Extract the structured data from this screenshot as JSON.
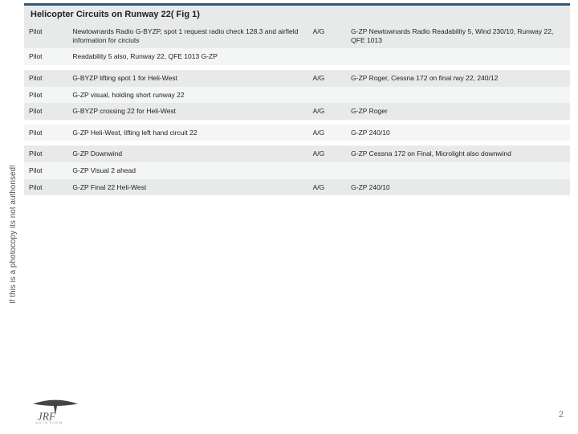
{
  "title": "Helicopter Circuits on Runway 22( Fig 1)",
  "side_text": "If this is a photocopy its not authorised!",
  "page_number": "2",
  "colors": {
    "accent_border": "#2b5a7a",
    "zebra_dark": "#e8eaea",
    "zebra_light": "#f4f5f5"
  },
  "col_widths": [
    "8%",
    "44%",
    "7%",
    "41%"
  ],
  "rows": [
    {
      "zebra": "dark",
      "c0": "Pilot",
      "c1": "Newtownards Radio G-BYZP, spot 1 request radio check 128.3 and airfield information for circiuts",
      "c2": "A/G",
      "c3": "G-ZP Newtownards Radio Readability 5, Wind 230/10, Runway 22, QFE 1013"
    },
    {
      "zebra": "light",
      "c0": "Pilot",
      "c1": "Readability 5 also, Runway 22, QFE 1013 G-ZP",
      "c2": "",
      "c3": ""
    },
    {
      "spacer": true
    },
    {
      "zebra": "dark",
      "c0": "Pilot",
      "c1": "G-BYZP lifting spot 1 for Heli-West",
      "c2": "A/G",
      "c3": "G-ZP Roger, Cessna 172 on final rwy 22, 240/12"
    },
    {
      "zebra": "light",
      "c0": "Pilot",
      "c1": "G-ZP visual, holding short runway 22",
      "c2": "",
      "c3": ""
    },
    {
      "zebra": "dark",
      "c0": "Pilot",
      "c1": "G-BYZP crossing 22 for Heli-West",
      "c2": "A/G",
      "c3": "G-ZP Roger"
    },
    {
      "spacer": true
    },
    {
      "zebra": "light",
      "c0": "Pilot",
      "c1": "G-ZP Heli-West, lifting left hand circuit 22",
      "c2": "A/G",
      "c3": "G-ZP 240/10"
    },
    {
      "spacer": true
    },
    {
      "zebra": "dark",
      "c0": "Pilot",
      "c1": "G-ZP Downwind",
      "c2": "A/G",
      "c3": "G-ZP Cessna 172 on Final, Microlight also downwind"
    },
    {
      "zebra": "light",
      "c0": "Pilot",
      "c1": "G-ZP Visual 2 ahead",
      "c2": "",
      "c3": ""
    },
    {
      "zebra": "dark",
      "c0": "Pilot",
      "c1": "G-ZP Final 22 Heli-West",
      "c2": "A/G",
      "c3": "G-ZP 240/10"
    }
  ]
}
